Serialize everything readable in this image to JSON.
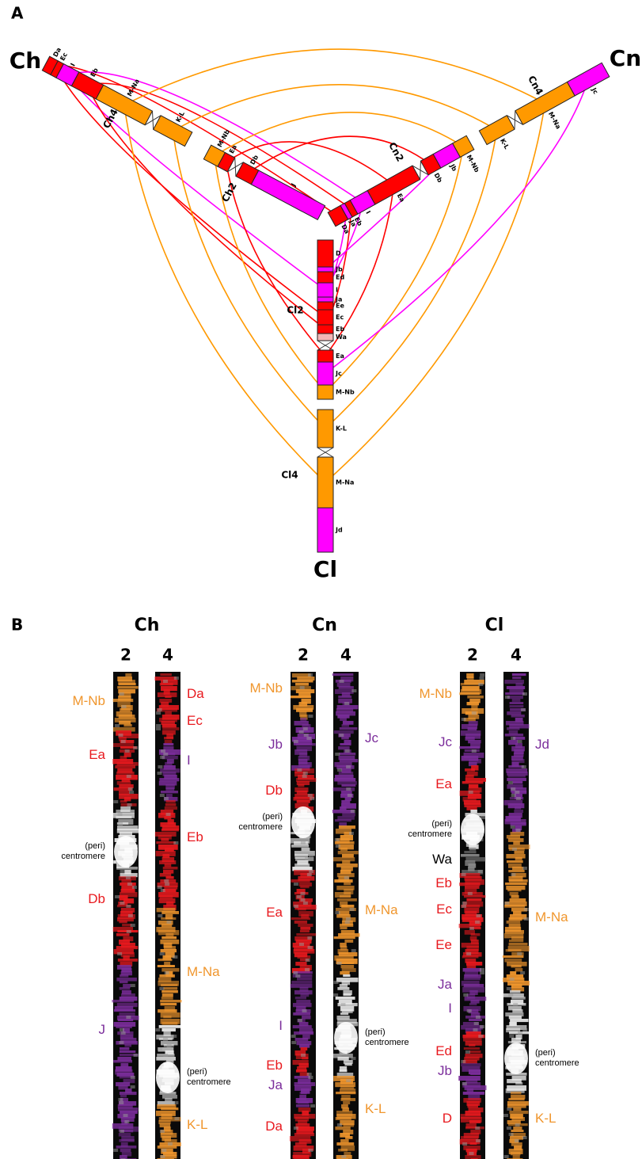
{
  "panel_a": {
    "label": "A",
    "species": [
      {
        "name": "Ch"
      },
      {
        "name": "Cn"
      },
      {
        "name": "Cl"
      }
    ],
    "chromosomes": [
      {
        "name": "Ch4",
        "segments": [
          {
            "label": "Da",
            "color": "#ff0000"
          },
          {
            "label": "Ec",
            "color": "#ff0000"
          },
          {
            "label": "I",
            "color": "#ff00ff"
          },
          {
            "label": "Eb",
            "color": "#ff0000"
          },
          {
            "label": "M-Na",
            "color": "#ff9900"
          },
          {
            "label": "K-L",
            "color": "#ff9900"
          }
        ]
      },
      {
        "name": "Ch2",
        "segments": [
          {
            "label": "M-Nb",
            "color": "#ff9900"
          },
          {
            "label": "Ea",
            "color": "#ff0000"
          },
          {
            "label": "Db",
            "color": "#ff0000"
          },
          {
            "label": "J",
            "color": "#ff00ff"
          }
        ]
      },
      {
        "name": "Cn4",
        "segments": [
          {
            "label": "Jc",
            "color": "#ff00ff"
          },
          {
            "label": "M-Na",
            "color": "#ff9900"
          },
          {
            "label": "K-L",
            "color": "#ff9900"
          }
        ]
      },
      {
        "name": "Cn2",
        "segments": [
          {
            "label": "M-Nb",
            "color": "#ff9900"
          },
          {
            "label": "Jb",
            "color": "#ff00ff"
          },
          {
            "label": "Db",
            "color": "#ff0000"
          },
          {
            "label": "Ea",
            "color": "#ff0000"
          },
          {
            "label": "I",
            "color": "#ff00ff"
          },
          {
            "label": "Eb",
            "color": "#ff0000"
          },
          {
            "label": "Ja",
            "color": "#ff00ff"
          },
          {
            "label": "Da",
            "color": "#ff0000"
          }
        ]
      },
      {
        "name": "Cl2",
        "segments": [
          {
            "label": "D",
            "color": "#ff0000"
          },
          {
            "label": "Jb",
            "color": "#ff00ff"
          },
          {
            "label": "Ed",
            "color": "#ff0000"
          },
          {
            "label": "I",
            "color": "#ff00ff"
          },
          {
            "label": "Ja",
            "color": "#ff00ff"
          },
          {
            "label": "Ee",
            "color": "#ff0000"
          },
          {
            "label": "Ec",
            "color": "#ff0000"
          },
          {
            "label": "Eb",
            "color": "#ff0000"
          },
          {
            "label": "Wa",
            "color": "#f4b6b6"
          },
          {
            "label": "Ea",
            "color": "#ff0000"
          },
          {
            "label": "Jc",
            "color": "#ff00ff"
          },
          {
            "label": "M-Nb",
            "color": "#ff9900"
          }
        ]
      },
      {
        "name": "Cl4",
        "segments": [
          {
            "label": "K-L",
            "color": "#ff9900"
          },
          {
            "label": "M-Na",
            "color": "#ff9900"
          },
          {
            "label": "Jd",
            "color": "#ff00ff"
          }
        ]
      }
    ]
  },
  "panel_b": {
    "label": "B",
    "groups": [
      {
        "species": "Ch",
        "columns": [
          {
            "number": "2",
            "labels": [
              {
                "text": "M-Nb",
                "color": "#f0962d"
              },
              {
                "text": "Ea",
                "color": "#e8191e"
              },
              {
                "text": "(peri) centromere",
                "color": "#000000"
              },
              {
                "text": "Db",
                "color": "#e8191e"
              },
              {
                "text": "J",
                "color": "#7b2d9b"
              }
            ]
          },
          {
            "number": "4",
            "labels": [
              {
                "text": "Da",
                "color": "#e8191e"
              },
              {
                "text": "Ec",
                "color": "#e8191e"
              },
              {
                "text": "I",
                "color": "#7b2d9b"
              },
              {
                "text": "Eb",
                "color": "#e8191e"
              },
              {
                "text": "M-Na",
                "color": "#f0962d"
              },
              {
                "text": "(peri) centromere",
                "color": "#000000"
              },
              {
                "text": "K-L",
                "color": "#f0962d"
              }
            ]
          }
        ]
      },
      {
        "species": "Cn",
        "columns": [
          {
            "number": "2",
            "labels": [
              {
                "text": "M-Nb",
                "color": "#f0962d"
              },
              {
                "text": "Jb",
                "color": "#7b2d9b"
              },
              {
                "text": "Db",
                "color": "#e8191e"
              },
              {
                "text": "(peri) centromere",
                "color": "#000000"
              },
              {
                "text": "Ea",
                "color": "#e8191e"
              },
              {
                "text": "I",
                "color": "#7b2d9b"
              },
              {
                "text": "Eb",
                "color": "#e8191e"
              },
              {
                "text": "Ja",
                "color": "#7b2d9b"
              },
              {
                "text": "Da",
                "color": "#e8191e"
              }
            ]
          },
          {
            "number": "4",
            "labels": [
              {
                "text": "Jc",
                "color": "#7b2d9b"
              },
              {
                "text": "M-Na",
                "color": "#f0962d"
              },
              {
                "text": "(peri) centromere",
                "color": "#000000"
              },
              {
                "text": "K-L",
                "color": "#f0962d"
              }
            ]
          }
        ]
      },
      {
        "species": "Cl",
        "columns": [
          {
            "number": "2",
            "labels": [
              {
                "text": "M-Nb",
                "color": "#f0962d"
              },
              {
                "text": "Jc",
                "color": "#7b2d9b"
              },
              {
                "text": "Ea",
                "color": "#e8191e"
              },
              {
                "text": "(peri) centromere",
                "color": "#000000"
              },
              {
                "text": "Wa",
                "color": "#000000"
              },
              {
                "text": "Eb",
                "color": "#e8191e"
              },
              {
                "text": "Ec",
                "color": "#e8191e"
              },
              {
                "text": "Ee",
                "color": "#e8191e"
              },
              {
                "text": "Ja",
                "color": "#7b2d9b"
              },
              {
                "text": "I",
                "color": "#7b2d9b"
              },
              {
                "text": "Ed",
                "color": "#e8191e"
              },
              {
                "text": "Jb",
                "color": "#7b2d9b"
              },
              {
                "text": "D",
                "color": "#e8191e"
              }
            ]
          },
          {
            "number": "4",
            "labels": [
              {
                "text": "Jd",
                "color": "#7b2d9b"
              },
              {
                "text": "M-Na",
                "color": "#f0962d"
              },
              {
                "text": "(peri) centromere",
                "color": "#000000"
              },
              {
                "text": "K-L",
                "color": "#f0962d"
              }
            ]
          }
        ]
      }
    ]
  }
}
